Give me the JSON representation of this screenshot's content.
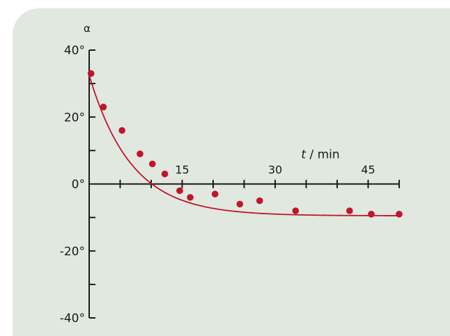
{
  "chart_data": {
    "type": "scatter",
    "title": "",
    "ylabel": "α",
    "xlabel": "t / min",
    "xlabel_parts": {
      "variable": "t",
      "unit": " / min"
    },
    "xlim": [
      0,
      50
    ],
    "ylim": [
      -40,
      40
    ],
    "x_tick_labels": [
      {
        "value": 15,
        "label": "15"
      },
      {
        "value": 30,
        "label": "30"
      },
      {
        "value": 45,
        "label": "45"
      }
    ],
    "y_tick_labels": [
      {
        "value": 40,
        "label": "40°"
      },
      {
        "value": 20,
        "label": "20°"
      },
      {
        "value": 0,
        "label": "0°"
      },
      {
        "value": -20,
        "label": "-20°"
      },
      {
        "value": -40,
        "label": "-40°"
      }
    ],
    "x_minor_ticks": [
      5,
      10,
      15,
      20,
      25,
      30,
      35,
      40,
      45,
      50
    ],
    "y_minor_ticks": [
      40,
      30,
      20,
      10,
      0,
      -10,
      -20,
      -30,
      -40
    ],
    "points": [
      {
        "x": 0.3,
        "y": 33
      },
      {
        "x": 2.3,
        "y": 23
      },
      {
        "x": 5.3,
        "y": 16
      },
      {
        "x": 8.2,
        "y": 9
      },
      {
        "x": 10.2,
        "y": 6
      },
      {
        "x": 12.2,
        "y": 3
      },
      {
        "x": 14.6,
        "y": -2
      },
      {
        "x": 16.3,
        "y": -4
      },
      {
        "x": 20.3,
        "y": -3
      },
      {
        "x": 24.3,
        "y": -6
      },
      {
        "x": 27.5,
        "y": -5
      },
      {
        "x": 33.3,
        "y": -8
      },
      {
        "x": 42,
        "y": -8
      },
      {
        "x": 45.5,
        "y": -9
      },
      {
        "x": 50,
        "y": -9
      }
    ],
    "fit_curve": {
      "asymptote": -9.5,
      "initial": 32.5,
      "decay_per_min": 0.147,
      "x_range": [
        0,
        50
      ]
    },
    "colors": {
      "series": "#c0152b",
      "axis": "#1a1a1a",
      "background": "#e1e8e0"
    },
    "grid": false,
    "legend": "none"
  }
}
